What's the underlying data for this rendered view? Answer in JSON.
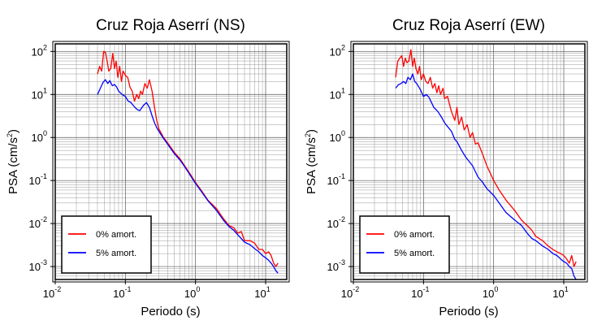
{
  "chart_data": [
    {
      "type": "line",
      "title": "Cruz Roja Aserrí (NS)",
      "xlabel": "Periodo (s)",
      "ylabel_main": "PSA (cm/s",
      "ylabel_exp": "2",
      "ylabel_close": ")",
      "x_scale": "log",
      "y_scale": "log",
      "xlim": [
        0.01,
        20
      ],
      "ylim": [
        0.0005,
        150
      ],
      "grid": true,
      "legend_position": "bottom-left",
      "x_ticks": [
        {
          "value": 0.01,
          "base": "10",
          "exp": "-2"
        },
        {
          "value": 0.1,
          "base": "10",
          "exp": "-1"
        },
        {
          "value": 1,
          "base": "10",
          "exp": "0"
        },
        {
          "value": 10,
          "base": "10",
          "exp": "1"
        }
      ],
      "y_ticks": [
        {
          "value": 0.001,
          "base": "10",
          "exp": "-3"
        },
        {
          "value": 0.01,
          "base": "10",
          "exp": "-2"
        },
        {
          "value": 0.1,
          "base": "10",
          "exp": "-1"
        },
        {
          "value": 1,
          "base": "10",
          "exp": "0"
        },
        {
          "value": 10,
          "base": "10",
          "exp": "1"
        },
        {
          "value": 100,
          "base": "10",
          "exp": "2"
        }
      ],
      "series": [
        {
          "name": "0% amort.",
          "color": "#ff0000",
          "x": [
            0.04,
            0.043,
            0.046,
            0.049,
            0.052,
            0.055,
            0.058,
            0.062,
            0.066,
            0.07,
            0.074,
            0.078,
            0.083,
            0.088,
            0.093,
            0.1,
            0.108,
            0.116,
            0.125,
            0.135,
            0.145,
            0.155,
            0.165,
            0.175,
            0.19,
            0.205,
            0.22,
            0.24,
            0.26,
            0.28,
            0.3,
            0.35,
            0.4,
            0.5,
            0.6,
            0.7,
            0.8,
            1.0,
            1.2,
            1.5,
            2.0,
            2.5,
            3.0,
            3.5,
            4.0,
            4.5,
            5.0,
            6.0,
            7.0,
            8.0,
            9.0,
            10.0,
            11.0,
            12.0,
            13.0,
            14.0,
            15.0
          ],
          "y": [
            30,
            45,
            35,
            100,
            95,
            60,
            35,
            40,
            90,
            40,
            60,
            25,
            45,
            20,
            35,
            28,
            25,
            15,
            12,
            7,
            10,
            8,
            12,
            10,
            18,
            14,
            22,
            12,
            5,
            2.5,
            1.6,
            1.0,
            0.75,
            0.45,
            0.32,
            0.22,
            0.16,
            0.09,
            0.06,
            0.035,
            0.022,
            0.013,
            0.009,
            0.008,
            0.006,
            0.0065,
            0.004,
            0.004,
            0.0035,
            0.0025,
            0.0025,
            0.002,
            0.0022,
            0.0018,
            0.0012,
            0.001,
            0.0012
          ]
        },
        {
          "name": "5% amort.",
          "color": "#0000ff",
          "x": [
            0.04,
            0.044,
            0.048,
            0.052,
            0.056,
            0.06,
            0.065,
            0.07,
            0.075,
            0.08,
            0.09,
            0.1,
            0.11,
            0.12,
            0.13,
            0.14,
            0.15,
            0.16,
            0.17,
            0.18,
            0.19,
            0.2,
            0.22,
            0.24,
            0.26,
            0.28,
            0.3,
            0.35,
            0.4,
            0.5,
            0.6,
            0.7,
            0.8,
            1.0,
            1.2,
            1.5,
            2.0,
            2.5,
            3.0,
            3.5,
            4.0,
            5.0,
            6.0,
            7.0,
            8.0,
            9.0,
            10.0,
            11.0,
            12.0,
            13.0,
            14.0,
            15.0
          ],
          "y": [
            10,
            14,
            19,
            22,
            18,
            21,
            16,
            17,
            15,
            12,
            10,
            9,
            7,
            6.5,
            5.5,
            4.8,
            4.4,
            4.2,
            4.8,
            5.5,
            6,
            6.5,
            5,
            3.2,
            2.2,
            1.7,
            1.4,
            0.95,
            0.7,
            0.42,
            0.3,
            0.21,
            0.15,
            0.085,
            0.057,
            0.034,
            0.02,
            0.012,
            0.0085,
            0.007,
            0.0055,
            0.0037,
            0.0032,
            0.0026,
            0.0022,
            0.0018,
            0.0016,
            0.0014,
            0.0012,
            0.001,
            0.0008,
            0.0007
          ]
        }
      ]
    },
    {
      "type": "line",
      "title": "Cruz Roja Aserrí (EW)",
      "xlabel": "Periodo (s)",
      "ylabel_main": "PSA (cm/s",
      "ylabel_exp": "2",
      "ylabel_close": ")",
      "x_scale": "log",
      "y_scale": "log",
      "xlim": [
        0.01,
        20
      ],
      "ylim": [
        0.0005,
        150
      ],
      "grid": true,
      "legend_position": "bottom-left",
      "x_ticks": [
        {
          "value": 0.01,
          "base": "10",
          "exp": "-2"
        },
        {
          "value": 0.1,
          "base": "10",
          "exp": "-1"
        },
        {
          "value": 1,
          "base": "10",
          "exp": "0"
        },
        {
          "value": 10,
          "base": "10",
          "exp": "1"
        }
      ],
      "y_ticks": [
        {
          "value": 0.001,
          "base": "10",
          "exp": "-3"
        },
        {
          "value": 0.01,
          "base": "10",
          "exp": "-2"
        },
        {
          "value": 0.1,
          "base": "10",
          "exp": "-1"
        },
        {
          "value": 1,
          "base": "10",
          "exp": "0"
        },
        {
          "value": 10,
          "base": "10",
          "exp": "1"
        },
        {
          "value": 100,
          "base": "10",
          "exp": "2"
        }
      ],
      "series": [
        {
          "name": "0% amort.",
          "color": "#ff0000",
          "x": [
            0.04,
            0.043,
            0.046,
            0.049,
            0.052,
            0.055,
            0.058,
            0.062,
            0.066,
            0.07,
            0.074,
            0.078,
            0.083,
            0.088,
            0.093,
            0.1,
            0.108,
            0.116,
            0.125,
            0.135,
            0.145,
            0.155,
            0.165,
            0.175,
            0.19,
            0.2,
            0.22,
            0.25,
            0.28,
            0.3,
            0.32,
            0.35,
            0.38,
            0.42,
            0.46,
            0.5,
            0.55,
            0.6,
            0.7,
            0.8,
            1.0,
            1.2,
            1.5,
            2.0,
            2.5,
            3.0,
            3.5,
            4.0,
            5.0,
            6.0,
            7.0,
            8.0,
            9.0,
            10.0,
            11.0,
            12.0,
            13.0,
            14.0,
            15.0
          ],
          "y": [
            25,
            60,
            70,
            80,
            45,
            70,
            55,
            60,
            110,
            45,
            70,
            40,
            30,
            45,
            22,
            30,
            20,
            18,
            25,
            14,
            18,
            11,
            16,
            10,
            14,
            8,
            9,
            4,
            2.5,
            5,
            2,
            3,
            1.5,
            2,
            1,
            1.3,
            0.7,
            0.75,
            0.4,
            0.22,
            0.1,
            0.06,
            0.035,
            0.02,
            0.012,
            0.009,
            0.007,
            0.005,
            0.004,
            0.003,
            0.0025,
            0.0022,
            0.002,
            0.0018,
            0.0015,
            0.0012,
            0.0018,
            0.001,
            0.0013
          ]
        },
        {
          "name": "5% amort.",
          "color": "#0000ff",
          "x": [
            0.04,
            0.044,
            0.048,
            0.052,
            0.056,
            0.06,
            0.065,
            0.07,
            0.075,
            0.08,
            0.09,
            0.1,
            0.11,
            0.12,
            0.13,
            0.14,
            0.15,
            0.16,
            0.18,
            0.2,
            0.22,
            0.25,
            0.28,
            0.3,
            0.35,
            0.4,
            0.5,
            0.6,
            0.7,
            0.8,
            1.0,
            1.2,
            1.5,
            2.0,
            2.5,
            3.0,
            3.5,
            4.0,
            5.0,
            6.0,
            7.0,
            8.0,
            9.0,
            10.0,
            11.0,
            12.0,
            13.0,
            14.0,
            15.0
          ],
          "y": [
            14,
            17,
            18,
            20,
            18,
            25,
            22,
            30,
            20,
            18,
            13,
            9,
            10,
            8.5,
            6.5,
            5,
            4.5,
            4,
            3,
            2.2,
            1.8,
            1.4,
            0.9,
            0.8,
            0.5,
            0.35,
            0.22,
            0.12,
            0.09,
            0.065,
            0.045,
            0.03,
            0.018,
            0.012,
            0.009,
            0.006,
            0.0045,
            0.004,
            0.003,
            0.0025,
            0.002,
            0.0018,
            0.0015,
            0.0013,
            0.0012,
            0.001,
            0.0009,
            0.0006,
            0.0005
          ]
        }
      ]
    }
  ]
}
